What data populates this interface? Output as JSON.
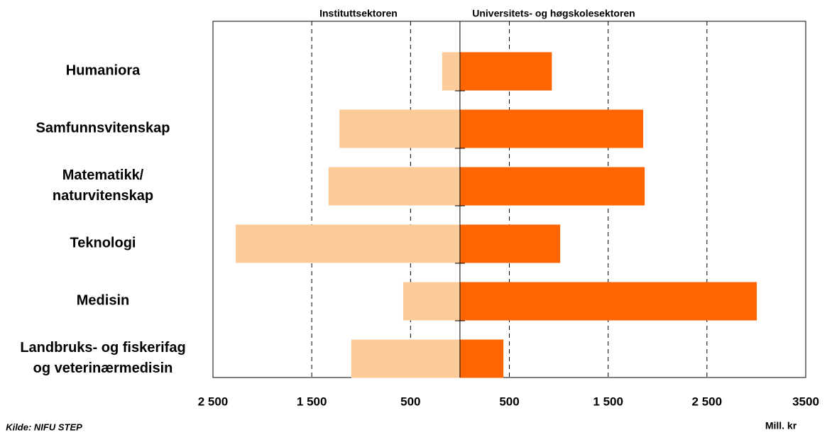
{
  "chart_data": {
    "type": "butterfly_bar",
    "categories": [
      [
        "Humaniora"
      ],
      [
        "Samfunnsvitenskap"
      ],
      [
        "Matematikk/",
        "naturvitenskap"
      ],
      [
        "Teknologi"
      ],
      [
        "Medisin"
      ],
      [
        "Landbruks- og fiskerifag",
        "og veterinærmedisin"
      ]
    ],
    "series": [
      {
        "name": "Instituttsektoren",
        "color": "#fdcb9a",
        "side": "left",
        "values": [
          180,
          1220,
          1330,
          2270,
          575,
          1100
        ]
      },
      {
        "name": "Universitets- og høgskolesektoren",
        "color": "#ff6600",
        "side": "right",
        "values": [
          930,
          1855,
          1870,
          1015,
          3005,
          440
        ]
      }
    ],
    "xlim": [
      -2500,
      3500
    ],
    "xticks": [
      {
        "value": -2500,
        "label": "2 500"
      },
      {
        "value": -1500,
        "label": "1 500"
      },
      {
        "value": -500,
        "label": "500"
      },
      500,
      {
        "value": 1500,
        "label": "1 500"
      },
      {
        "value": 2500,
        "label": "2 500"
      },
      3500
    ],
    "grid": true,
    "source": "Kilde: NIFU STEP",
    "unit_label": "Mill. kr"
  }
}
